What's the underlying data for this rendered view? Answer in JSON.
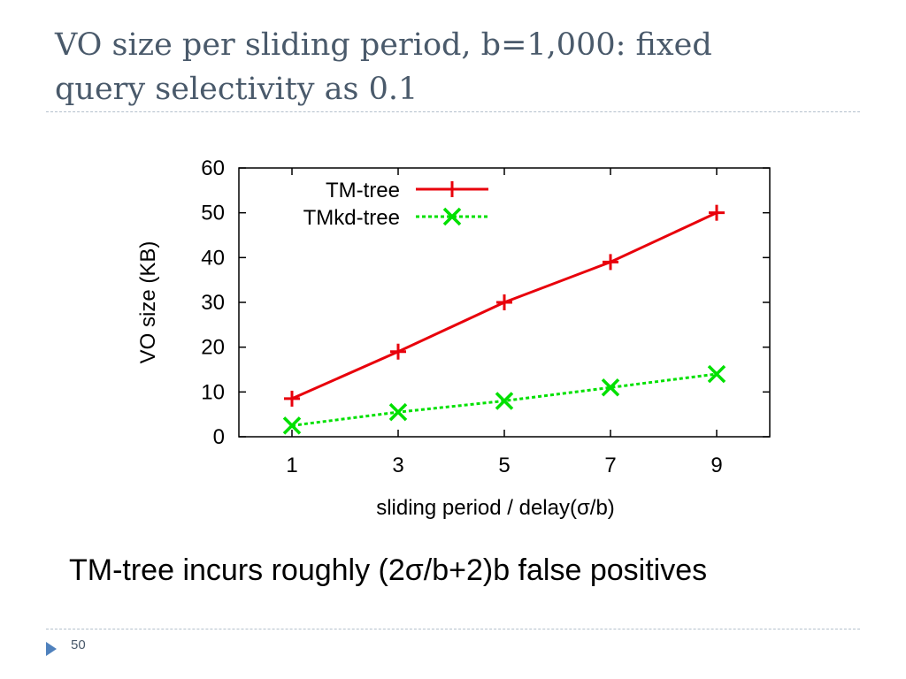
{
  "slide": {
    "title_line1": "VO size per sliding period, b=1,000: fixed",
    "title_line2": "query selectivity as 0.1",
    "caption": "TM-tree incurs roughly (2σ/b+2)b false positives",
    "page_number": "50",
    "icons": {
      "footer": "triangle-bullet-icon"
    }
  },
  "chart_data": {
    "type": "line",
    "title": "",
    "xlabel": "sliding period / delay(σ/b)",
    "ylabel": "VO size (KB)",
    "x": [
      1,
      3,
      5,
      7,
      9
    ],
    "xticks": [
      "1",
      "3",
      "5",
      "7",
      "9"
    ],
    "xlim": [
      0,
      10
    ],
    "yticks": [
      "0",
      "10",
      "20",
      "30",
      "40",
      "50",
      "60"
    ],
    "ylim": [
      0,
      60
    ],
    "grid": false,
    "legend_position": "top-left",
    "series": [
      {
        "name": "TM-tree",
        "values": [
          8.5,
          19,
          30,
          39,
          50
        ],
        "color": "#e8000b",
        "marker": "plus",
        "dashed": false
      },
      {
        "name": "TMkd-tree",
        "values": [
          2.5,
          5.5,
          8,
          11,
          14
        ],
        "color": "#00e000",
        "marker": "cross",
        "dashed": true
      }
    ]
  }
}
